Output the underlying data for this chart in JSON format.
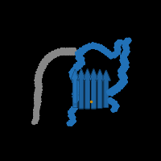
{
  "background_color": "#000000",
  "fig_width": 2.0,
  "fig_height": 2.0,
  "dpi": 100,
  "blue_color": "#2272b8",
  "blue_color_dark": "#1a5a94",
  "blue_color_light": "#4a9ad4",
  "gray_color": "#888888",
  "gray_color_dark": "#555555",
  "gray_color_light": "#aaaaaa"
}
